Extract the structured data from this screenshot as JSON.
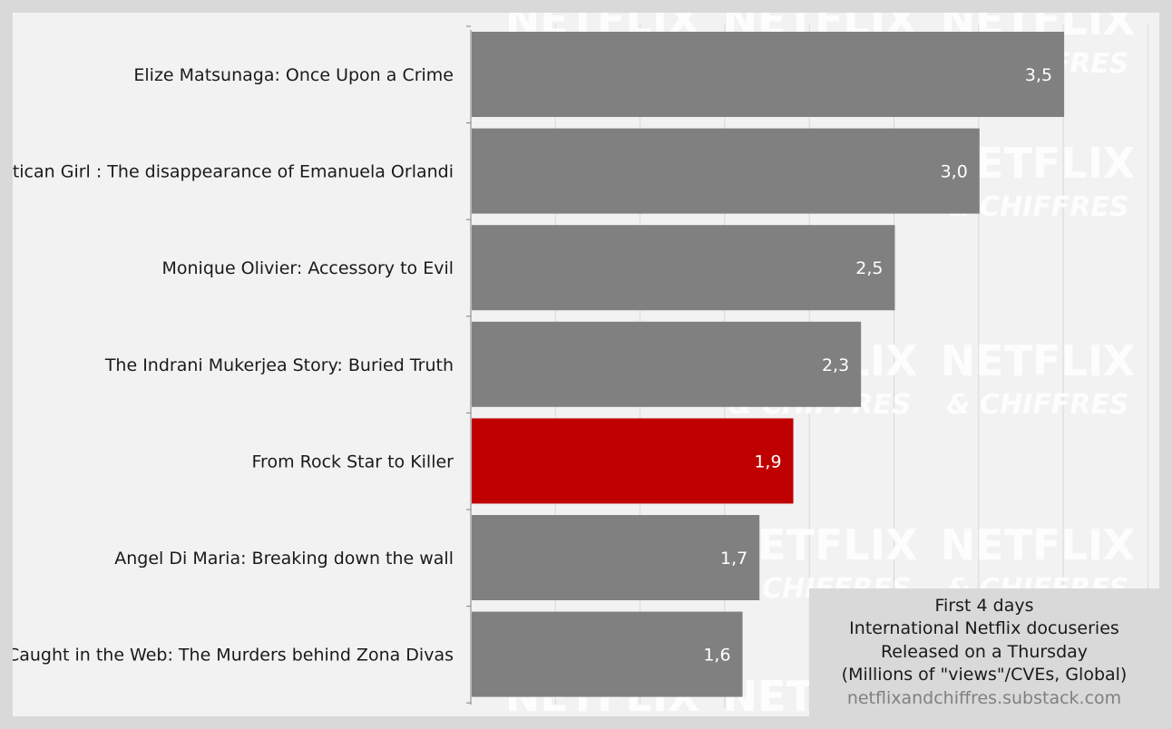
{
  "chart_data": {
    "type": "bar",
    "orientation": "horizontal",
    "categories": [
      "Elize Matsunaga: Once Upon a Crime",
      "Vatican Girl : The disappearance of Emanuela Orlandi",
      "Monique Olivier: Accessory to Evil",
      "The Indrani Mukerjea Story: Buried Truth",
      "From Rock Star to Killer",
      "Angel Di Maria: Breaking down the wall",
      "Caught in the Web: The Murders behind Zona Divas"
    ],
    "values": [
      3.5,
      3.0,
      2.5,
      2.3,
      1.9,
      1.7,
      1.6
    ],
    "value_labels": [
      "3,5",
      "3,0",
      "2,5",
      "2,3",
      "1,9",
      "1,7",
      "1,6"
    ],
    "highlight_index": 4,
    "bar_color": "#808080",
    "highlight_color": "#c00000",
    "xlim": [
      0,
      4
    ],
    "grid": true,
    "title": "",
    "xlabel": "",
    "ylabel": "",
    "legend_placement": "bottom-right"
  },
  "legend": {
    "line1": "First 4 days",
    "line2": "International Netflix docuseries",
    "line3": "Released on a Thursday",
    "line4": "(Millions of \"views\"/CVEs, Global)",
    "source": "netflixandchiffres.substack.com"
  },
  "watermark": {
    "word1": "NETFLIX",
    "word2": "& CHIFFRES"
  }
}
